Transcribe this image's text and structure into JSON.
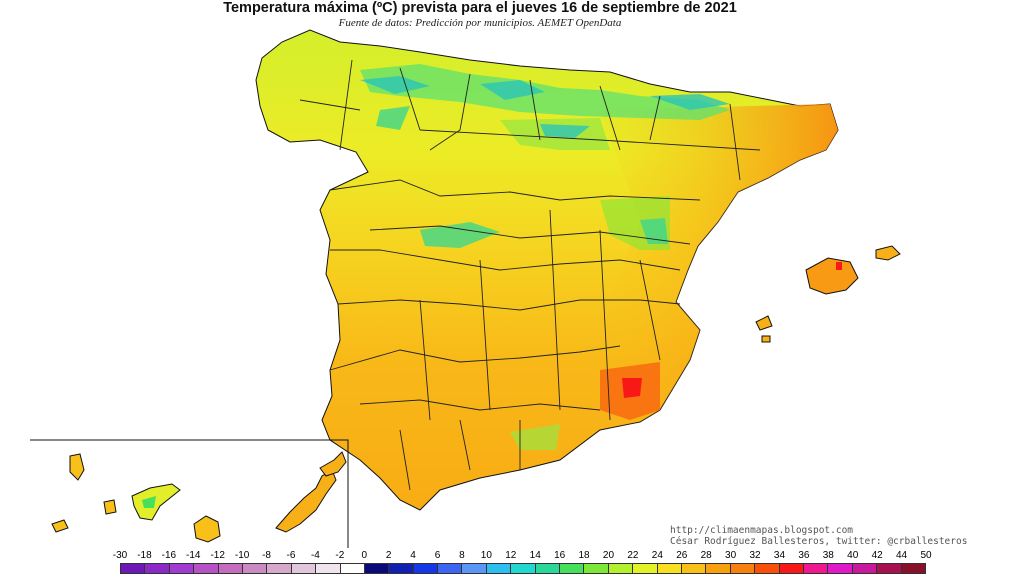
{
  "map": {
    "title": "Temperatura máxima (ºC) prevista para el jueves 16 de septiembre de 2021",
    "subtitle": "Fuente de datos: Predicción por municipios. AEMET OpenData",
    "credits": {
      "url": "http://climaenmapas.blogspot.com",
      "author": "César Rodríguez Ballesteros, twitter: @crballesteros"
    }
  },
  "legend": {
    "labels": [
      "-30",
      "-18",
      "-16",
      "-14",
      "-12",
      "-10",
      "-8",
      "-6",
      "-4",
      "-2",
      "0",
      "2",
      "4",
      "6",
      "8",
      "10",
      "12",
      "14",
      "16",
      "18",
      "20",
      "22",
      "24",
      "26",
      "28",
      "30",
      "32",
      "34",
      "36",
      "38",
      "40",
      "42",
      "44",
      "50"
    ],
    "colors": [
      "#6f18b8",
      "#8b28c8",
      "#a23cd0",
      "#b452c6",
      "#c46cc0",
      "#cc8ac2",
      "#d6a8cc",
      "#e2c6dc",
      "#f0e4ee",
      "#ffffff",
      "#0a0a7a",
      "#1020b0",
      "#1438e8",
      "#3a66f2",
      "#5a96f6",
      "#2cc0f0",
      "#22d8d0",
      "#2ad89a",
      "#46e05a",
      "#7ee838",
      "#b2f030",
      "#e2f428",
      "#f8e020",
      "#f8c018",
      "#f8a010",
      "#f88010",
      "#f85008",
      "#f81818",
      "#f01890",
      "#e018c8",
      "#c8189c",
      "#a81050",
      "#881028"
    ]
  }
}
